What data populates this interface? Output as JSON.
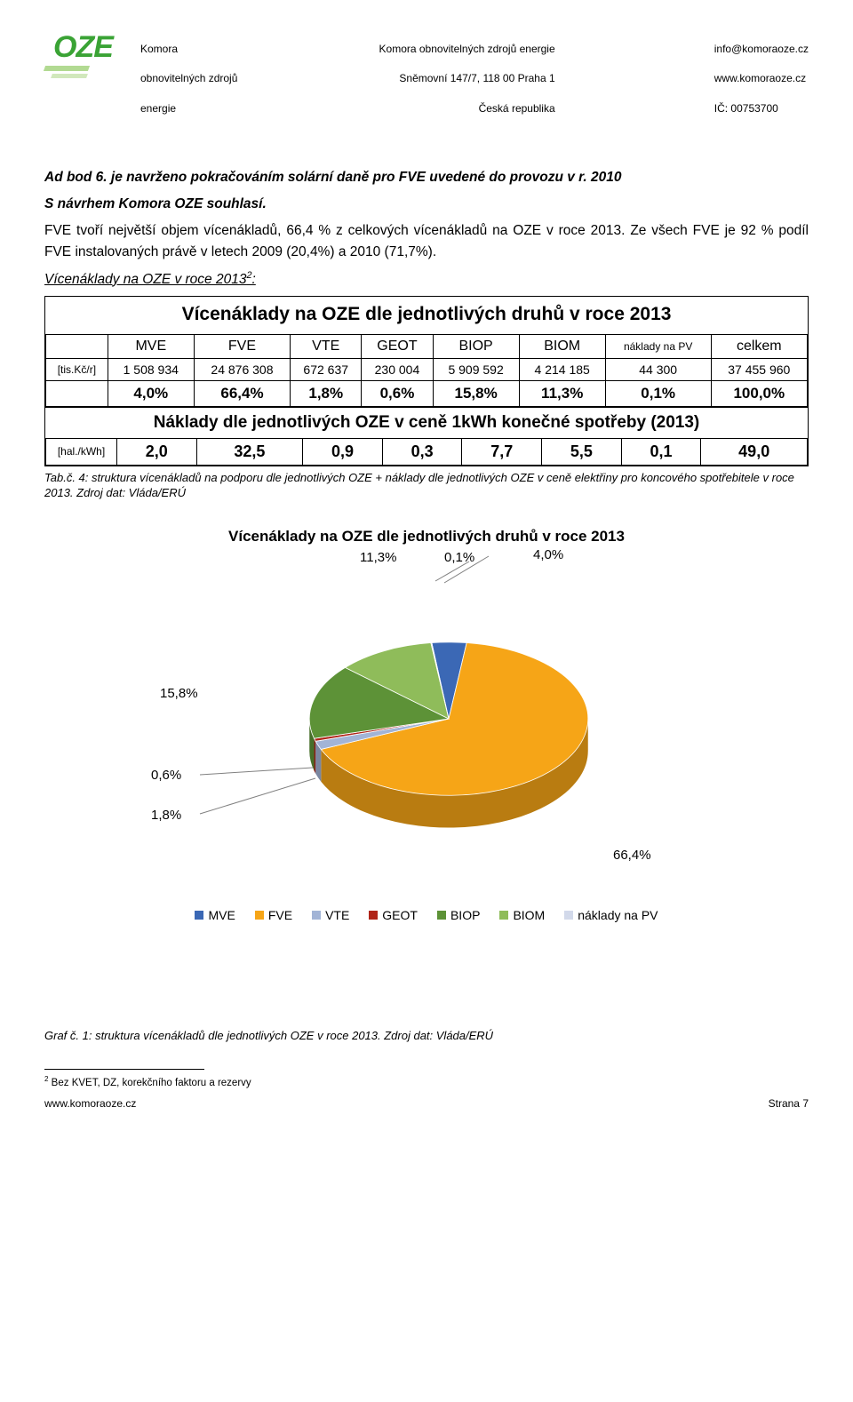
{
  "header": {
    "logo_text": "OZE",
    "col1_l1": "Komora",
    "col1_l2": "obnovitelných zdrojů",
    "col1_l3": "energie",
    "col2_l1": "Komora obnovitelných zdrojů energie",
    "col2_l2": "Sněmovní 147/7, 118 00 Praha 1",
    "col2_l3": "Česká republika",
    "col3_l1": "info@komoraoze.cz",
    "col3_l2": "www.komoraoze.cz",
    "col3_l3": "IČ: 00753700"
  },
  "para": {
    "p1a": "Ad bod 6.",
    "p1b": "   je navrženo pokračováním solární daně pro FVE uvedené do provozu v r. 2010",
    "p2": "S návrhem Komora OZE souhlasí.",
    "p3": "FVE tvoří největší objem vícenákladů, 66,4 % z celkových vícenákladů na OZE v roce 2013. Ze všech FVE je 92 % podíl FVE instalovaných právě v letech 2009 (20,4%) a 2010 (71,7%).",
    "p4": "Vícenáklady na OZE v roce 2013",
    "p4sup": "2",
    "p4colon": ":"
  },
  "table": {
    "title": "Vícenáklady na OZE dle jednotlivých druhů v roce 2013",
    "cols": [
      "MVE",
      "FVE",
      "VTE",
      "GEOT",
      "BIOP",
      "BIOM",
      "náklady na PV",
      "celkem"
    ],
    "row_unit1": "[tis.Kč/r]",
    "row_vals": [
      "1 508 934",
      "24 876 308",
      "672 637",
      "230 004",
      "5 909 592",
      "4 214 185",
      "44 300",
      "37 455 960"
    ],
    "row_pct": [
      "4,0%",
      "66,4%",
      "1,8%",
      "0,6%",
      "15,8%",
      "11,3%",
      "0,1%",
      "100,0%"
    ],
    "sub_title": "Náklady dle jednotlivých OZE v ceně 1kWh konečné spotřeby (2013)",
    "row_unit2": "[hal./kWh]",
    "row_kwh": [
      "2,0",
      "32,5",
      "0,9",
      "0,3",
      "7,7",
      "5,5",
      "0,1",
      "49,0"
    ]
  },
  "tab_caption": "Tab.č. 4: struktura vícenákladů na podporu dle jednotlivých OZE + náklady dle jednotlivých OZE v ceně elektřiny pro koncového spotřebitele v roce 2013. Zdroj dat: Vláda/ERÚ",
  "chart": {
    "title": "Vícenáklady na OZE dle jednotlivých druhů v roce 2013",
    "type": "pie",
    "series": [
      {
        "name": "MVE",
        "value": 4.0,
        "color": "#3b68b5",
        "label": "4,0%"
      },
      {
        "name": "FVE",
        "value": 66.4,
        "color": "#f6a517",
        "label": "66,4%"
      },
      {
        "name": "VTE",
        "value": 1.8,
        "color": "#a2b4d6",
        "label": "1,8%"
      },
      {
        "name": "GEOT",
        "value": 0.6,
        "color": "#b02418",
        "label": "0,6%"
      },
      {
        "name": "BIOP",
        "value": 15.8,
        "color": "#5d9237",
        "label": "15,8%"
      },
      {
        "name": "BIOM",
        "value": 11.3,
        "color": "#8fbc5a",
        "label": "11,3%"
      },
      {
        "name": "náklady na PV",
        "value": 0.1,
        "color": "#d2d9ea",
        "label": "0,1%"
      }
    ],
    "legend": [
      "MVE",
      "FVE",
      "VTE",
      "GEOT",
      "BIOP",
      "BIOM",
      "náklady na PV"
    ],
    "title_fontsize": 17,
    "label_fontsize": 15,
    "background_color": "#ffffff"
  },
  "chart_caption": "Graf č. 1: struktura vícenákladů dle jednotlivých OZE v roce 2013. Zdroj dat: Vláda/ERÚ",
  "footnote": {
    "num": "2",
    "text": " Bez KVET, DZ, korekčního faktoru a rezervy"
  },
  "footer": {
    "left": "www.komoraoze.cz",
    "right": "Strana 7"
  }
}
